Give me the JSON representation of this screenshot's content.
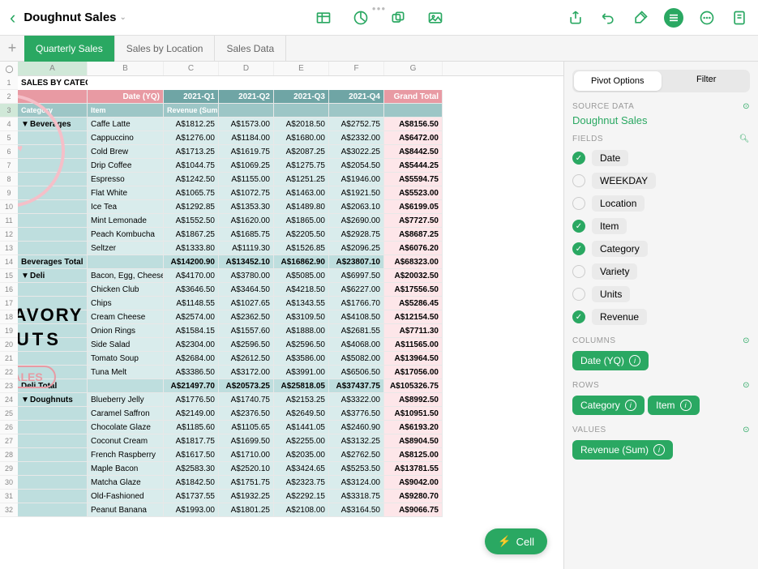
{
  "doc": {
    "title": "Doughnut Sales"
  },
  "tabs": [
    "Quarterly Sales",
    "Sales by Location",
    "Sales Data"
  ],
  "activeTab": 0,
  "sheetTitle": "SALES BY CATEGORY",
  "columns": [
    "A",
    "B",
    "C",
    "D",
    "E",
    "F",
    "G"
  ],
  "colHeaders": {
    "dateLabel": "Date (YQ)",
    "quarters": [
      "2021-Q1",
      "2021-Q2",
      "2021-Q3",
      "2021-Q4"
    ],
    "grandTotal": "Grand Total",
    "category": "Category",
    "item": "Item",
    "revenue": "Revenue (Sum)"
  },
  "groups": [
    {
      "name": "Beverages",
      "items": [
        {
          "item": "Caffe Latte",
          "q": [
            "A$1812.25",
            "A$1573.00",
            "A$2018.50",
            "A$2752.75"
          ],
          "gt": "A$8156.50"
        },
        {
          "item": "Cappuccino",
          "q": [
            "A$1276.00",
            "A$1184.00",
            "A$1680.00",
            "A$2332.00"
          ],
          "gt": "A$6472.00"
        },
        {
          "item": "Cold Brew",
          "q": [
            "A$1713.25",
            "A$1619.75",
            "A$2087.25",
            "A$3022.25"
          ],
          "gt": "A$8442.50"
        },
        {
          "item": "Drip Coffee",
          "q": [
            "A$1044.75",
            "A$1069.25",
            "A$1275.75",
            "A$2054.50"
          ],
          "gt": "A$5444.25"
        },
        {
          "item": "Espresso",
          "q": [
            "A$1242.50",
            "A$1155.00",
            "A$1251.25",
            "A$1946.00"
          ],
          "gt": "A$5594.75"
        },
        {
          "item": "Flat White",
          "q": [
            "A$1065.75",
            "A$1072.75",
            "A$1463.00",
            "A$1921.50"
          ],
          "gt": "A$5523.00"
        },
        {
          "item": "Ice Tea",
          "q": [
            "A$1292.85",
            "A$1353.30",
            "A$1489.80",
            "A$2063.10"
          ],
          "gt": "A$6199.05"
        },
        {
          "item": "Mint Lemonade",
          "q": [
            "A$1552.50",
            "A$1620.00",
            "A$1865.00",
            "A$2690.00"
          ],
          "gt": "A$7727.50"
        },
        {
          "item": "Peach Kombucha",
          "q": [
            "A$1867.25",
            "A$1685.75",
            "A$2205.50",
            "A$2928.75"
          ],
          "gt": "A$8687.25"
        },
        {
          "item": "Seltzer",
          "q": [
            "A$1333.80",
            "A$1119.30",
            "A$1526.85",
            "A$2096.25"
          ],
          "gt": "A$6076.20"
        }
      ],
      "total": {
        "label": "Beverages Total",
        "q": [
          "A$14200.90",
          "A$13452.10",
          "A$16862.90",
          "A$23807.10"
        ],
        "gt": "A$68323.00"
      }
    },
    {
      "name": "Deli",
      "items": [
        {
          "item": "Bacon, Egg, Cheese",
          "q": [
            "A$4170.00",
            "A$3780.00",
            "A$5085.00",
            "A$6997.50"
          ],
          "gt": "A$20032.50"
        },
        {
          "item": "Chicken Club",
          "q": [
            "A$3646.50",
            "A$3464.50",
            "A$4218.50",
            "A$6227.00"
          ],
          "gt": "A$17556.50"
        },
        {
          "item": "Chips",
          "q": [
            "A$1148.55",
            "A$1027.65",
            "A$1343.55",
            "A$1766.70"
          ],
          "gt": "A$5286.45"
        },
        {
          "item": "Cream Cheese",
          "q": [
            "A$2574.00",
            "A$2362.50",
            "A$3109.50",
            "A$4108.50"
          ],
          "gt": "A$12154.50"
        },
        {
          "item": "Onion Rings",
          "q": [
            "A$1584.15",
            "A$1557.60",
            "A$1888.00",
            "A$2681.55"
          ],
          "gt": "A$7711.30"
        },
        {
          "item": "Side Salad",
          "q": [
            "A$2304.00",
            "A$2596.50",
            "A$2596.50",
            "A$4068.00"
          ],
          "gt": "A$11565.00"
        },
        {
          "item": "Tomato Soup",
          "q": [
            "A$2684.00",
            "A$2612.50",
            "A$3586.00",
            "A$5082.00"
          ],
          "gt": "A$13964.50"
        },
        {
          "item": "Tuna Melt",
          "q": [
            "A$3386.50",
            "A$3172.00",
            "A$3991.00",
            "A$6506.50"
          ],
          "gt": "A$17056.00"
        }
      ],
      "total": {
        "label": "Deli Total",
        "q": [
          "A$21497.70",
          "A$20573.25",
          "A$25818.05",
          "A$37437.75"
        ],
        "gt": "A$105326.75"
      }
    },
    {
      "name": "Doughnuts",
      "items": [
        {
          "item": "Blueberry Jelly",
          "q": [
            "A$1776.50",
            "A$1740.75",
            "A$2153.25",
            "A$3322.00"
          ],
          "gt": "A$8992.50"
        },
        {
          "item": "Caramel Saffron",
          "q": [
            "A$2149.00",
            "A$2376.50",
            "A$2649.50",
            "A$3776.50"
          ],
          "gt": "A$10951.50"
        },
        {
          "item": "Chocolate Glaze",
          "q": [
            "A$1185.60",
            "A$1105.65",
            "A$1441.05",
            "A$2460.90"
          ],
          "gt": "A$6193.20"
        },
        {
          "item": "Coconut Cream",
          "q": [
            "A$1817.75",
            "A$1699.50",
            "A$2255.00",
            "A$3132.25"
          ],
          "gt": "A$8904.50"
        },
        {
          "item": "French Raspberry",
          "q": [
            "A$1617.50",
            "A$1710.00",
            "A$2035.00",
            "A$2762.50"
          ],
          "gt": "A$8125.00"
        },
        {
          "item": "Maple Bacon",
          "q": [
            "A$2583.30",
            "A$2520.10",
            "A$3424.65",
            "A$5253.50"
          ],
          "gt": "A$13781.55"
        },
        {
          "item": "Matcha Glaze",
          "q": [
            "A$1842.50",
            "A$1751.75",
            "A$2323.75",
            "A$3124.00"
          ],
          "gt": "A$9042.00"
        },
        {
          "item": "Old-Fashioned",
          "q": [
            "A$1737.55",
            "A$1932.25",
            "A$2292.15",
            "A$3318.75"
          ],
          "gt": "A$9280.70"
        },
        {
          "item": "Peanut Banana",
          "q": [
            "A$1993.00",
            "A$1801.25",
            "A$2108.00",
            "A$3164.50"
          ],
          "gt": "A$9066.75"
        }
      ]
    }
  ],
  "colors": {
    "accent": "#2aa862",
    "pink": "#e89aa3",
    "tealHdr": "#6fa5a5",
    "tealSub": "#9dc6c6",
    "bodyTeal": "#d9ecec",
    "bodyTealDark": "#bedede",
    "gtPink": "#fde6e9"
  },
  "sidebar": {
    "pivotOptions": "Pivot Options",
    "filter": "Filter",
    "sourceData": "SOURCE DATA",
    "sourceName": "Doughnut Sales",
    "fieldsLabel": "FIELDS",
    "fields": [
      {
        "name": "Date",
        "on": true
      },
      {
        "name": "WEEKDAY",
        "on": false
      },
      {
        "name": "Location",
        "on": false
      },
      {
        "name": "Item",
        "on": true
      },
      {
        "name": "Category",
        "on": true
      },
      {
        "name": "Variety",
        "on": false
      },
      {
        "name": "Units",
        "on": false
      },
      {
        "name": "Revenue",
        "on": true
      }
    ],
    "columns": {
      "label": "COLUMNS",
      "pills": [
        "Date (YQ)"
      ]
    },
    "rows": {
      "label": "ROWS",
      "pills": [
        "Category",
        "Item"
      ]
    },
    "values": {
      "label": "VALUES",
      "pills": [
        "Revenue (Sum)"
      ]
    }
  },
  "fab": "Cell",
  "bg": {
    "t1": "SAVORY",
    "t2": "NUTS",
    "btn": "SALES"
  }
}
